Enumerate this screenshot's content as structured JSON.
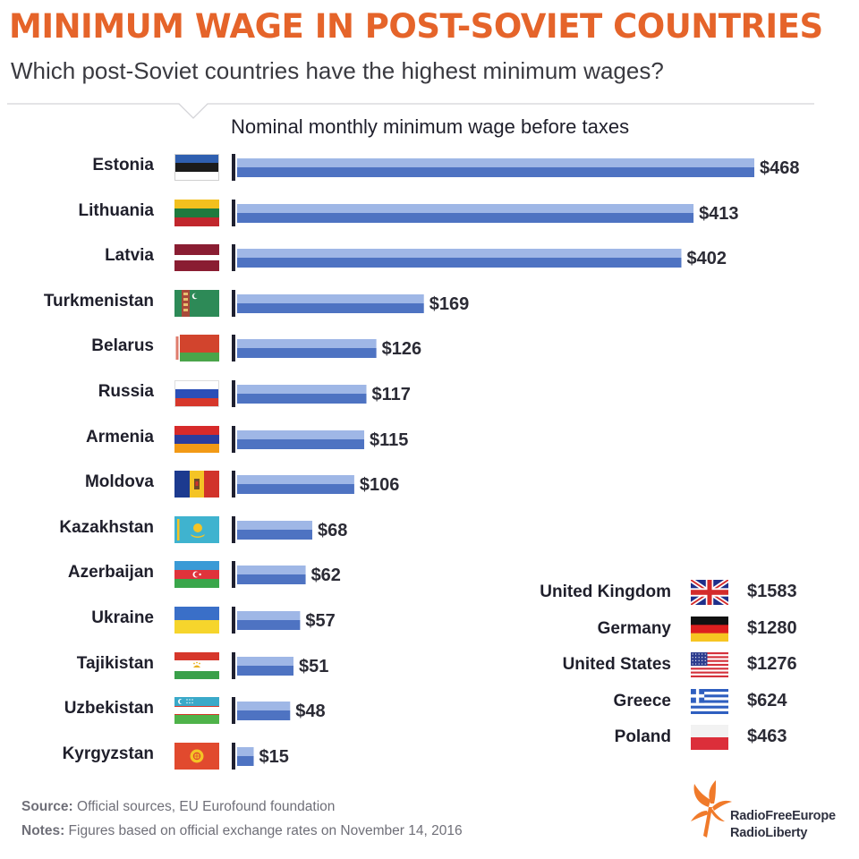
{
  "title": "MINIMUM WAGE IN POST-SOVIET COUNTRIES",
  "subtitle": "Which post-Soviet countries have the highest minimum wages?",
  "colors": {
    "title": "#e5642a",
    "bar_top": "#9fb7e6",
    "bar_bottom": "#4e73c2",
    "baseline": "#1f2030",
    "logo": "#f07a2a"
  },
  "chart_data": {
    "type": "bar",
    "orientation": "horizontal",
    "title": "Nominal monthly minimum wage before taxes",
    "categories": [
      "Estonia",
      "Lithuania",
      "Latvia",
      "Turkmenistan",
      "Belarus",
      "Russia",
      "Armenia",
      "Moldova",
      "Kazakhstan",
      "Azerbaijan",
      "Ukraine",
      "Tajikistan",
      "Uzbekistan",
      "Kyrgyzstan"
    ],
    "values": [
      468,
      413,
      402,
      169,
      126,
      117,
      115,
      106,
      68,
      62,
      57,
      51,
      48,
      15
    ],
    "value_labels": [
      "$468",
      "$413",
      "$402",
      "$169",
      "$126",
      "$117",
      "$115",
      "$106",
      "$68",
      "$62",
      "$57",
      "$51",
      "$48",
      "$15"
    ],
    "flags": [
      "estonia-flag-icon",
      "lithuania-flag-icon",
      "latvia-flag-icon",
      "turkmenistan-flag-icon",
      "belarus-flag-icon",
      "russia-flag-icon",
      "armenia-flag-icon",
      "moldova-flag-icon",
      "kazakhstan-flag-icon",
      "azerbaijan-flag-icon",
      "ukraine-flag-icon",
      "tajikistan-flag-icon",
      "uzbekistan-flag-icon",
      "kyrgyzstan-flag-icon"
    ],
    "xlim": [
      0,
      468
    ],
    "grid": false
  },
  "comparison": [
    {
      "country": "United Kingdom",
      "value": "$1583",
      "flag": "united-kingdom-flag-icon"
    },
    {
      "country": "Germany",
      "value": "$1280",
      "flag": "germany-flag-icon"
    },
    {
      "country": "United States",
      "value": "$1276",
      "flag": "united-states-flag-icon"
    },
    {
      "country": "Greece",
      "value": "$624",
      "flag": "greece-flag-icon"
    },
    {
      "country": "Poland",
      "value": "$463",
      "flag": "poland-flag-icon"
    }
  ],
  "footer": {
    "source_label": "Source:",
    "source_text": "Official sources, EU Eurofound foundation",
    "notes_label": "Notes:",
    "notes_text": "Figures based on official exchange rates on November 14, 2016"
  },
  "logo": {
    "line1": "RadioFreeEurope",
    "line2": "RadioLiberty"
  }
}
